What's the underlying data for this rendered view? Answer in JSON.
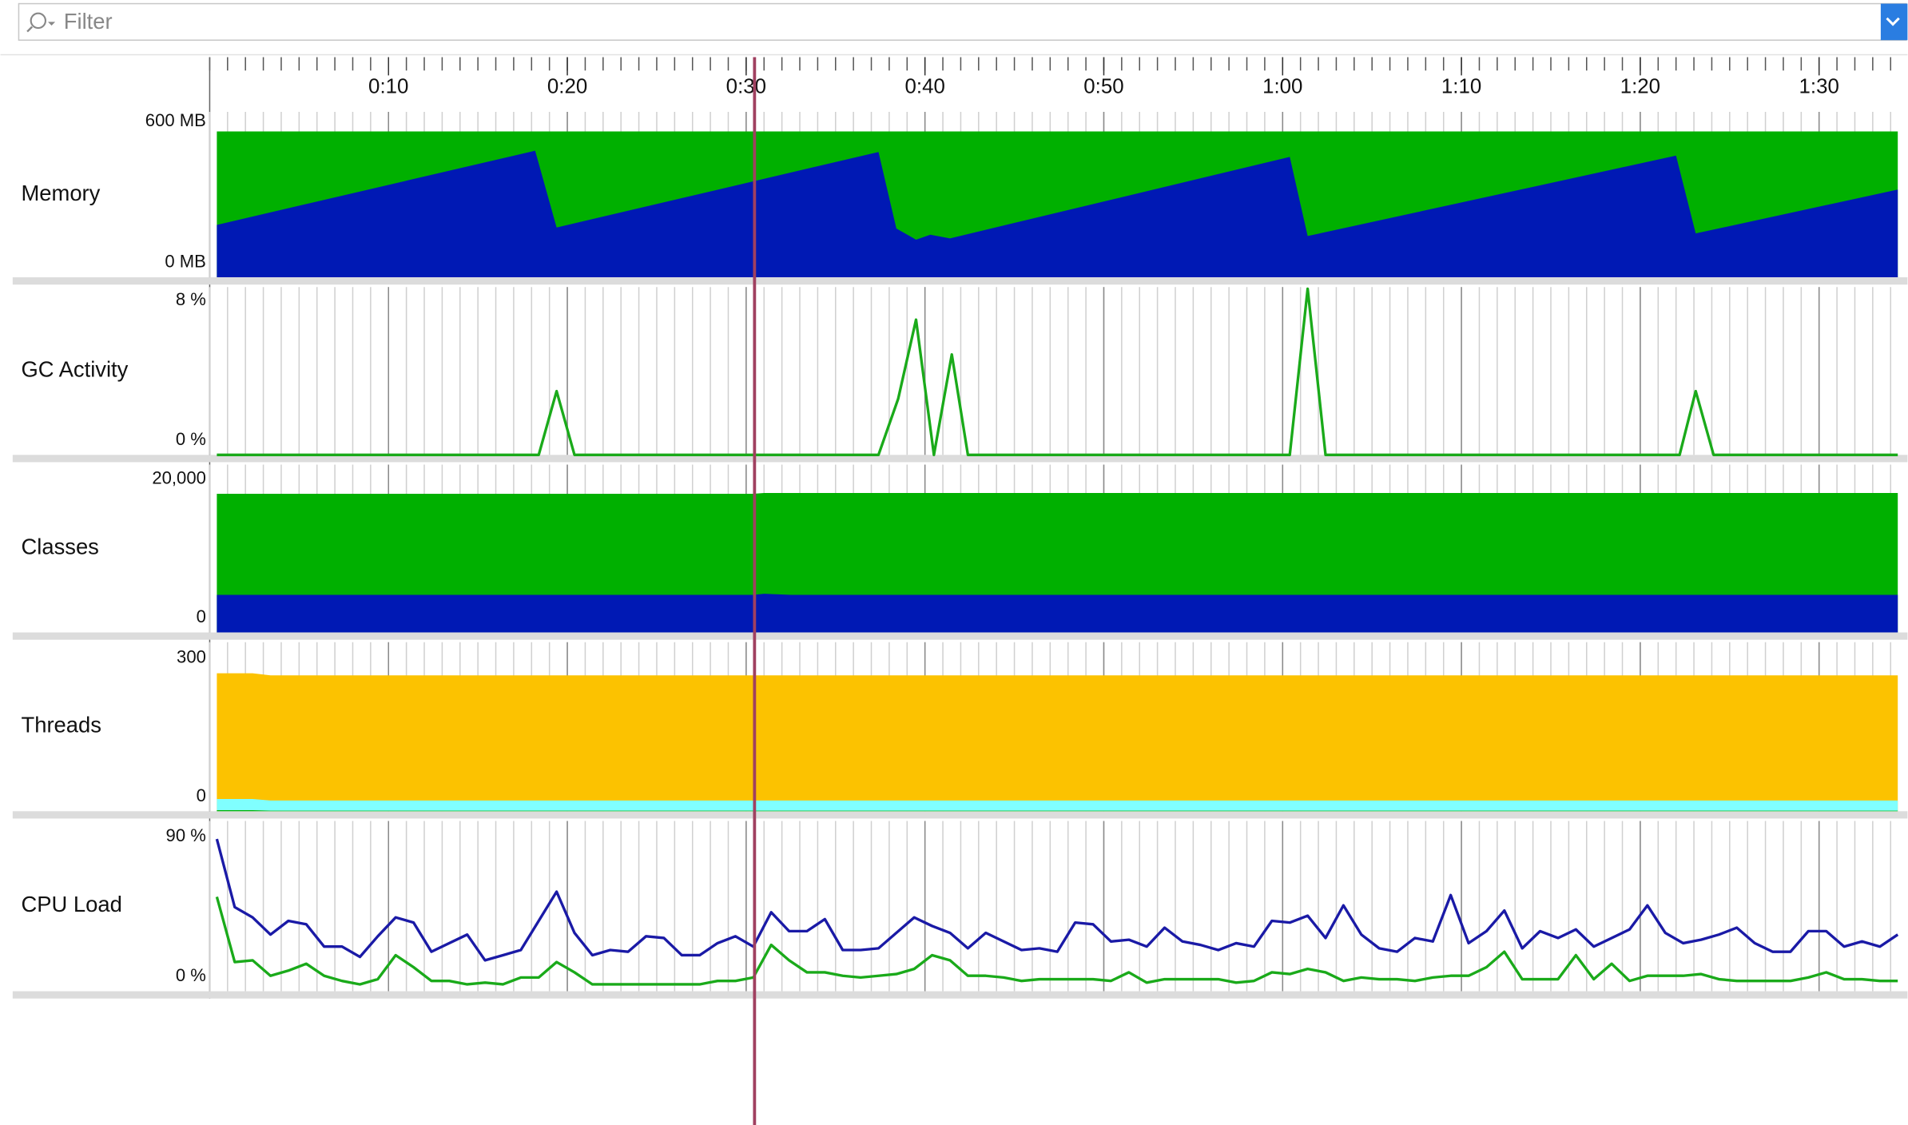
{
  "filter": {
    "placeholder": "Filter"
  },
  "time_axis": {
    "xlim": [
      0,
      94.4
    ],
    "xticks": [
      {
        "value": 10,
        "label": "0:10"
      },
      {
        "value": 20,
        "label": "0:20"
      },
      {
        "value": 30,
        "label": "0:30"
      },
      {
        "value": 40,
        "label": "0:40"
      },
      {
        "value": 50,
        "label": "0:50"
      },
      {
        "value": 60,
        "label": "1:00"
      },
      {
        "value": 70,
        "label": "1:10"
      },
      {
        "value": 80,
        "label": "1:20"
      },
      {
        "value": 90,
        "label": "1:30"
      }
    ]
  },
  "chart_data": [
    {
      "type": "area",
      "title": "Memory",
      "ylim": [
        0,
        600
      ],
      "yticks": [
        {
          "value": 0,
          "label": "0 MB"
        },
        {
          "value": 600,
          "label": "600 MB"
        }
      ],
      "x": [
        0.4,
        18.2,
        19.4,
        37.4,
        38.4,
        39.5,
        40.3,
        41.4,
        60.4,
        61.4,
        82.0,
        83.1,
        94.4
      ],
      "series": [
        {
          "color": "#00b000",
          "values": [
            562,
            562,
            562,
            562,
            562,
            562,
            562,
            562,
            562,
            562,
            562,
            562,
            562
          ]
        },
        {
          "color": "#0019b4",
          "values": [
            202,
            488,
            192,
            483,
            188,
            145,
            164,
            150,
            464,
            159,
            469,
            169,
            338
          ]
        }
      ]
    },
    {
      "type": "line",
      "title": "GC Activity",
      "ylim": [
        0,
        8
      ],
      "yticks": [
        {
          "value": 0,
          "label": "0 %"
        },
        {
          "value": 8,
          "label": "8 %"
        }
      ],
      "x": [
        0.4,
        18.4,
        19.4,
        20.4,
        37.4,
        38.5,
        39.5,
        40.5,
        41.5,
        42.4,
        60.4,
        61.4,
        62.4,
        82.2,
        83.1,
        84.1,
        94.4
      ],
      "series": [
        {
          "color": "#1aaa1a",
          "values": [
            0,
            0,
            3.3,
            0,
            0,
            2.9,
            7.0,
            0,
            5.2,
            0,
            0,
            8.6,
            0,
            0,
            3.3,
            0,
            0
          ]
        }
      ]
    },
    {
      "type": "area",
      "title": "Classes",
      "ylim": [
        0,
        20000
      ],
      "yticks": [
        0,
        {
          "value": 20000,
          "label": "20,000"
        }
      ],
      "x": [
        0.4,
        30.4,
        31.0,
        32.5,
        94.4
      ],
      "series": [
        {
          "color": "#00b000",
          "values": [
            18100,
            18100,
            18200,
            18200,
            18200
          ]
        },
        {
          "color": "#0019b4",
          "values": [
            4900,
            4900,
            5050,
            4900,
            4900
          ]
        }
      ]
    },
    {
      "type": "area",
      "title": "Threads",
      "ylim": [
        0,
        300
      ],
      "yticks": [
        0,
        300
      ],
      "x": [
        0.4,
        2.4,
        3.4,
        94.4
      ],
      "series": [
        {
          "color": "#fcc200",
          "values": [
            270,
            270,
            266,
            266
          ]
        },
        {
          "color": "#80ffff",
          "values": [
            24,
            24,
            21,
            21
          ]
        },
        {
          "color": "#00b000",
          "values": [
            2,
            2,
            1,
            1
          ]
        }
      ]
    },
    {
      "type": "line",
      "title": "CPU Load",
      "ylim": [
        0,
        90
      ],
      "yticks": [
        {
          "value": 0,
          "label": "0 %"
        },
        {
          "value": 90,
          "label": "90 %"
        }
      ],
      "x": [
        0.4,
        1.4,
        2.4,
        3.4,
        4.4,
        5.4,
        6.4,
        7.4,
        8.4,
        9.4,
        10.4,
        11.4,
        12.4,
        13.4,
        14.4,
        15.4,
        16.4,
        17.4,
        18.4,
        19.4,
        20.4,
        21.4,
        22.4,
        23.4,
        24.4,
        25.4,
        26.4,
        27.4,
        28.4,
        29.4,
        30.4,
        31.4,
        32.4,
        33.4,
        34.4,
        35.4,
        36.4,
        37.4,
        38.4,
        39.4,
        40.4,
        41.4,
        42.4,
        43.4,
        44.4,
        45.4,
        46.4,
        47.4,
        48.4,
        49.4,
        50.4,
        51.4,
        52.4,
        53.4,
        54.4,
        55.4,
        56.4,
        57.4,
        58.4,
        59.4,
        60.4,
        61.4,
        62.4,
        63.4,
        64.4,
        65.4,
        66.4,
        67.4,
        68.4,
        69.4,
        70.4,
        71.4,
        72.4,
        73.4,
        74.4,
        75.4,
        76.4,
        77.4,
        78.4,
        79.4,
        80.4,
        81.4,
        82.4,
        83.4,
        84.4,
        85.4,
        86.4,
        87.4,
        88.4,
        89.4,
        90.4,
        91.4,
        92.4,
        93.4,
        94.4
      ],
      "series": [
        {
          "color": "#1a1aa6",
          "values": [
            88.7,
            49,
            43,
            33,
            41,
            39,
            26,
            26,
            20,
            32,
            43,
            40,
            23,
            28,
            33,
            18,
            21,
            24,
            41,
            58,
            34,
            21,
            24,
            23,
            32,
            31,
            21,
            21,
            28,
            32,
            26,
            46,
            35,
            35,
            42,
            24,
            24,
            25,
            34,
            43,
            38,
            34,
            25,
            34,
            29,
            24,
            25,
            23,
            40,
            39,
            29,
            30,
            26,
            37,
            29,
            27,
            24,
            28,
            26,
            41,
            40,
            44,
            31,
            50,
            33,
            25,
            23,
            31,
            29,
            56,
            28,
            35,
            47,
            25,
            35,
            31,
            36,
            26,
            31,
            36,
            50,
            34,
            28,
            30,
            33,
            37,
            28,
            23,
            23,
            35,
            35,
            26,
            29,
            26,
            33
          ]
        },
        {
          "color": "#1aaa1a",
          "values": [
            55,
            17,
            18,
            9,
            12,
            16,
            9,
            6,
            4,
            7,
            21,
            14,
            6,
            6,
            4,
            5,
            4,
            8,
            8,
            17,
            11,
            4,
            4,
            4,
            4,
            4,
            4,
            4,
            6,
            6,
            8,
            27,
            18,
            11,
            11,
            9,
            8,
            9,
            10,
            13,
            21,
            18,
            9,
            9,
            8,
            6,
            7,
            7,
            7,
            7,
            6,
            11,
            5,
            7,
            7,
            7,
            7,
            5,
            6,
            11,
            10,
            13,
            11,
            6,
            8,
            7,
            7,
            6,
            8,
            9,
            9,
            14,
            23,
            7,
            7,
            7,
            21,
            7,
            16,
            6,
            9,
            9,
            9,
            10,
            7,
            6,
            6,
            6,
            6,
            8,
            11,
            7,
            7,
            6,
            6
          ]
        }
      ]
    }
  ]
}
